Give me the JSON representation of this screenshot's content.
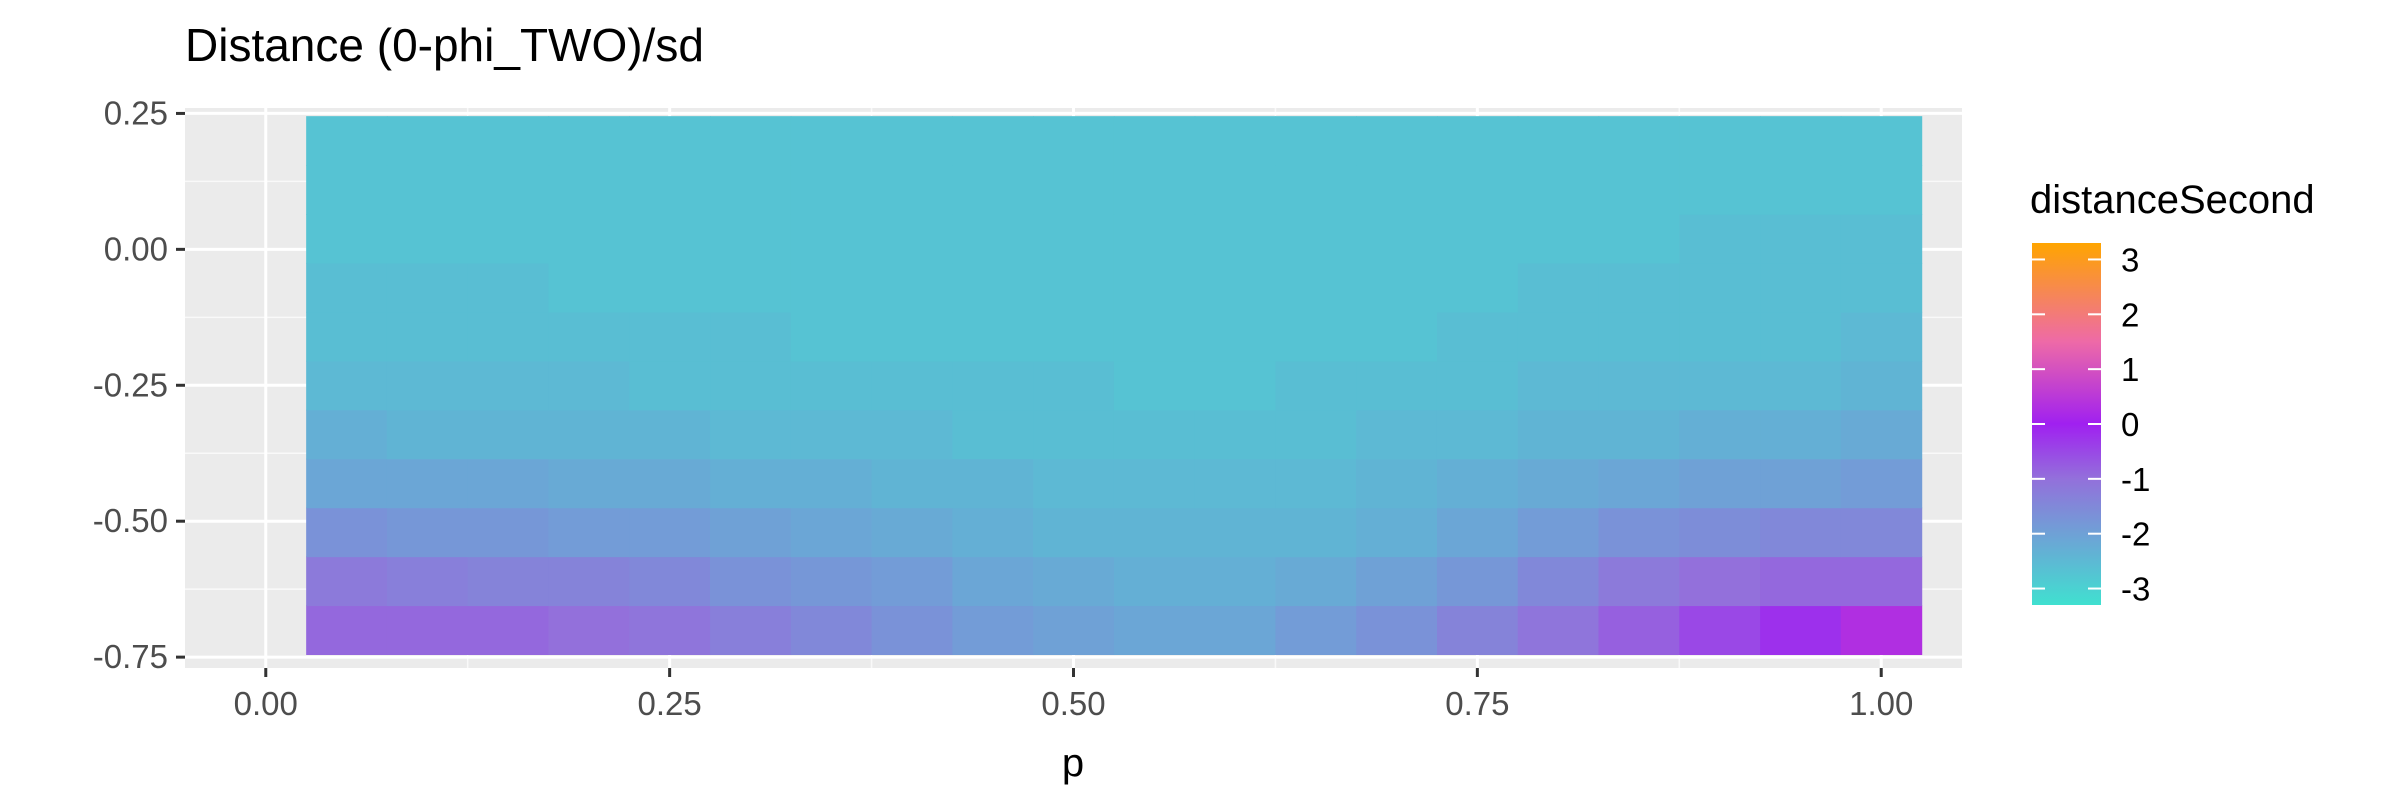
{
  "chart_data": {
    "type": "heatmap",
    "title": "Distance (0-phi_TWO)/sd",
    "xlabel": "p",
    "ylabel": "",
    "xlim": [
      -0.05,
      1.05
    ],
    "ylim": [
      -0.77,
      0.26
    ],
    "x_ticks": [
      0.0,
      0.25,
      0.5,
      0.75,
      1.0
    ],
    "x_tick_labels": [
      "0.00",
      "0.25",
      "0.50",
      "0.75",
      "1.00"
    ],
    "y_ticks": [
      0.25,
      0.0,
      -0.25,
      -0.5,
      -0.75
    ],
    "y_tick_labels": [
      "0.25",
      "0.00",
      "-0.25",
      "-0.50",
      "-0.75"
    ],
    "grid": true,
    "x": [
      0.05,
      0.1,
      0.15,
      0.2,
      0.25,
      0.3,
      0.35,
      0.4,
      0.45,
      0.5,
      0.55,
      0.6,
      0.65,
      0.7,
      0.75,
      0.8,
      0.85,
      0.9,
      0.95,
      1.0
    ],
    "y": [
      -0.7,
      -0.61,
      -0.52,
      -0.43,
      -0.34,
      -0.25,
      -0.16,
      -0.07,
      0.02,
      0.11,
      0.2
    ],
    "z": [
      [
        -0.9,
        -0.9,
        -0.9,
        -1.0,
        -1.1,
        -1.3,
        -1.5,
        -1.7,
        -1.9,
        -2.0,
        -2.1,
        -2.1,
        -1.9,
        -1.7,
        -1.4,
        -1.1,
        -0.8,
        -0.5,
        -0.2,
        0.3
      ],
      [
        -1.2,
        -1.3,
        -1.4,
        -1.4,
        -1.5,
        -1.7,
        -1.8,
        -1.9,
        -2.1,
        -2.2,
        -2.3,
        -2.3,
        -2.2,
        -2.0,
        -1.8,
        -1.5,
        -1.2,
        -1.0,
        -0.9,
        -0.9
      ],
      [
        -1.7,
        -1.8,
        -1.8,
        -1.9,
        -1.9,
        -2.0,
        -2.1,
        -2.2,
        -2.3,
        -2.4,
        -2.4,
        -2.4,
        -2.4,
        -2.3,
        -2.1,
        -1.9,
        -1.7,
        -1.6,
        -1.5,
        -1.5
      ],
      [
        -2.1,
        -2.1,
        -2.1,
        -2.2,
        -2.2,
        -2.3,
        -2.3,
        -2.4,
        -2.4,
        -2.5,
        -2.5,
        -2.5,
        -2.5,
        -2.4,
        -2.3,
        -2.2,
        -2.1,
        -2.0,
        -2.0,
        -1.9
      ],
      [
        -2.3,
        -2.4,
        -2.4,
        -2.4,
        -2.4,
        -2.5,
        -2.5,
        -2.5,
        -2.6,
        -2.6,
        -2.6,
        -2.6,
        -2.6,
        -2.5,
        -2.5,
        -2.4,
        -2.4,
        -2.3,
        -2.3,
        -2.2
      ],
      [
        -2.5,
        -2.5,
        -2.5,
        -2.5,
        -2.6,
        -2.6,
        -2.6,
        -2.6,
        -2.6,
        -2.6,
        -2.7,
        -2.7,
        -2.6,
        -2.6,
        -2.6,
        -2.5,
        -2.5,
        -2.5,
        -2.5,
        -2.4
      ],
      [
        -2.6,
        -2.6,
        -2.6,
        -2.6,
        -2.6,
        -2.6,
        -2.7,
        -2.7,
        -2.7,
        -2.7,
        -2.7,
        -2.7,
        -2.7,
        -2.7,
        -2.6,
        -2.6,
        -2.6,
        -2.6,
        -2.6,
        -2.5
      ],
      [
        -2.6,
        -2.6,
        -2.6,
        -2.7,
        -2.7,
        -2.7,
        -2.7,
        -2.7,
        -2.7,
        -2.7,
        -2.7,
        -2.7,
        -2.7,
        -2.7,
        -2.7,
        -2.6,
        -2.6,
        -2.6,
        -2.6,
        -2.6
      ],
      [
        -2.7,
        -2.7,
        -2.7,
        -2.7,
        -2.7,
        -2.7,
        -2.7,
        -2.7,
        -2.7,
        -2.7,
        -2.7,
        -2.7,
        -2.7,
        -2.7,
        -2.7,
        -2.7,
        -2.7,
        -2.6,
        -2.6,
        -2.6
      ],
      [
        -2.7,
        -2.7,
        -2.7,
        -2.7,
        -2.7,
        -2.7,
        -2.7,
        -2.7,
        -2.7,
        -2.7,
        -2.7,
        -2.7,
        -2.7,
        -2.7,
        -2.7,
        -2.7,
        -2.7,
        -2.7,
        -2.7,
        -2.7
      ],
      [
        -2.7,
        -2.7,
        -2.7,
        -2.7,
        -2.7,
        -2.7,
        -2.7,
        -2.7,
        -2.7,
        -2.7,
        -2.7,
        -2.7,
        -2.7,
        -2.7,
        -2.7,
        -2.7,
        -2.7,
        -2.7,
        -2.7,
        -2.7
      ]
    ],
    "legend": {
      "title": "distanceSecond",
      "placement": "right",
      "breaks": [
        3,
        2,
        1,
        0,
        -1,
        -2,
        -3
      ],
      "labels": [
        "3",
        "2",
        "1",
        "0",
        "-1",
        "-2",
        "-3"
      ],
      "range": [
        -3.3,
        3.3
      ],
      "color_stops": [
        {
          "value": -3.3,
          "color": "#40e0d0"
        },
        {
          "value": -1.0,
          "color": "#9370db"
        },
        {
          "value": 0.0,
          "color": "#a020f0"
        },
        {
          "value": 1.5,
          "color": "#ee6aa7"
        },
        {
          "value": 3.3,
          "color": "#ffa500"
        }
      ]
    },
    "colors": {
      "panel_background": "#ebebeb",
      "grid_major": "#ffffff",
      "tick_text": "#4d4d4d",
      "tick_mark": "#333333"
    }
  }
}
